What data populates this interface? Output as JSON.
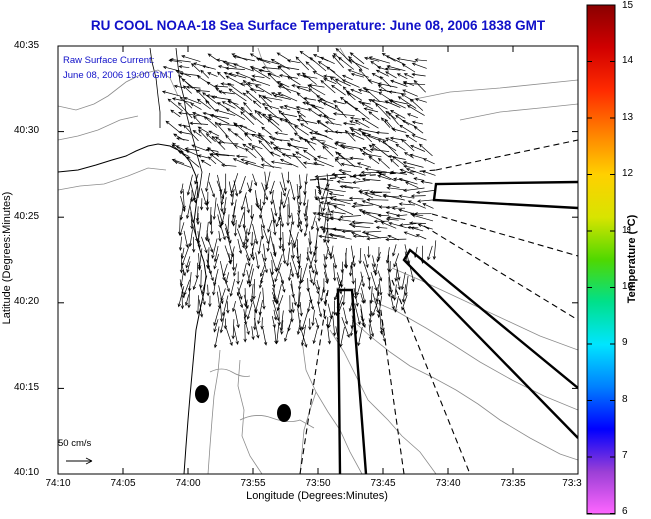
{
  "title": "RU COOL  NOAA-18  Sea Surface Temperature:  June 08, 2006 1838 GMT",
  "annotations": {
    "line1": "Raw Surface Current:",
    "line2": "June 08, 2006 19:00 GMT",
    "scale_label": "50 cm/s"
  },
  "axes": {
    "xlabel": "Longitude (Degrees:Minutes)",
    "ylabel": "Latitude (Degrees:Minutes)",
    "x_ticks": [
      "74:10",
      "74:05",
      "74:00",
      "73:55",
      "73:50",
      "73:45",
      "73:40",
      "73:35",
      "73:3"
    ],
    "y_ticks": [
      "40:35",
      "40:30",
      "40:25",
      "40:20",
      "40:15",
      "40:10"
    ]
  },
  "colorbar": {
    "title": "Temperature (°C)",
    "ticks": [
      "15",
      "14",
      "13",
      "12",
      "11",
      "10",
      "9",
      "8",
      "7",
      "6"
    ],
    "colors": [
      "#ff66ff",
      "#9b3fd6",
      "#0000ff",
      "#0080ff",
      "#00e5ff",
      "#00e08a",
      "#50d800",
      "#d8e400",
      "#ffd000",
      "#ff8000",
      "#ff2a00",
      "#d00000",
      "#8a0000"
    ]
  }
}
